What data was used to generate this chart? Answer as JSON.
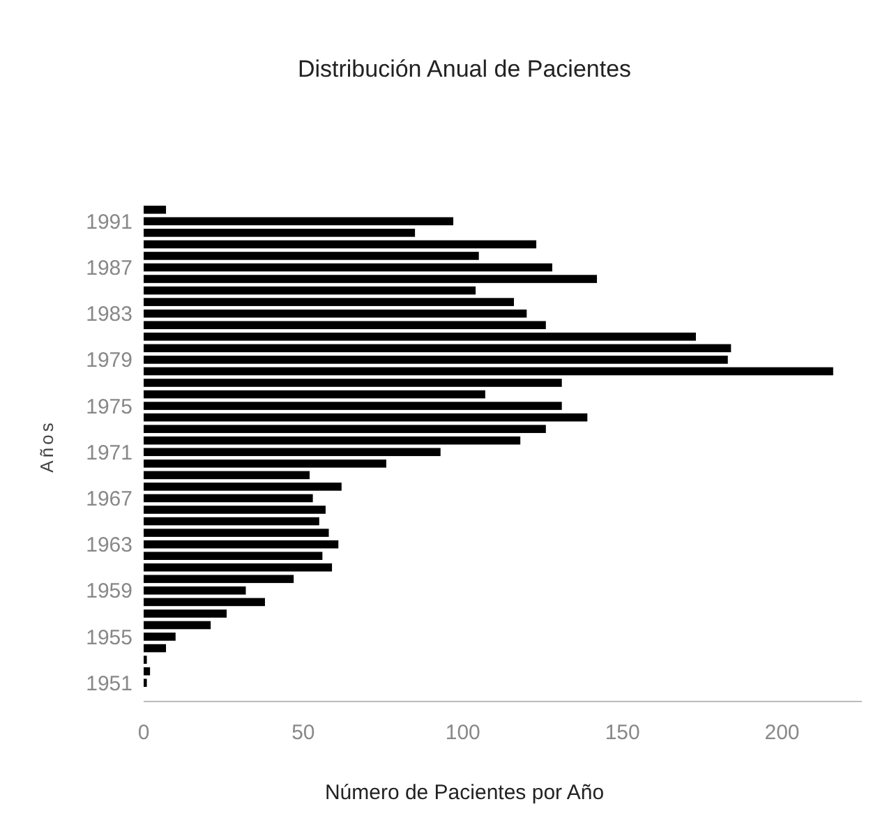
{
  "chart_data": {
    "type": "bar",
    "orientation": "horizontal",
    "title": "Distribución Anual de Pacientes",
    "xlabel": "Número de Pacientes por Año",
    "ylabel": "Años",
    "categories": [
      null,
      "1991",
      null,
      null,
      null,
      "1987",
      null,
      null,
      null,
      "1983",
      null,
      null,
      null,
      "1979",
      null,
      null,
      null,
      "1975",
      null,
      null,
      null,
      "1971",
      null,
      null,
      null,
      "1967",
      null,
      null,
      null,
      "1963",
      null,
      null,
      null,
      "1959",
      null,
      null,
      null,
      "1955",
      null,
      null,
      null,
      "1951"
    ],
    "values": [
      7,
      97,
      85,
      123,
      105,
      128,
      142,
      104,
      116,
      120,
      126,
      173,
      184,
      183,
      216,
      131,
      107,
      131,
      139,
      126,
      118,
      93,
      76,
      52,
      62,
      53,
      57,
      55,
      58,
      61,
      56,
      59,
      47,
      32,
      38,
      26,
      21,
      10,
      7,
      1,
      2,
      1
    ],
    "color": "#000000",
    "xlim": [
      0,
      225
    ],
    "xticks": [
      0,
      50,
      100,
      150,
      200
    ],
    "grid": false
  }
}
